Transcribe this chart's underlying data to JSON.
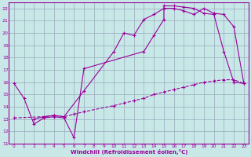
{
  "xlabel": "Windchill (Refroidissement éolien,°C)",
  "bg_color": "#c8e8e8",
  "line_color": "#990099",
  "grid_color": "#99aabb",
  "xlim": [
    -0.5,
    23.5
  ],
  "ylim": [
    11,
    22.5
  ],
  "xticks": [
    0,
    1,
    2,
    3,
    4,
    5,
    6,
    7,
    8,
    9,
    10,
    11,
    12,
    13,
    14,
    15,
    16,
    17,
    18,
    19,
    20,
    21,
    22,
    23
  ],
  "yticks": [
    11,
    12,
    13,
    14,
    15,
    16,
    17,
    18,
    19,
    20,
    21,
    22
  ],
  "line1_x": [
    0,
    1,
    2,
    3,
    4,
    5,
    6,
    7,
    13,
    14,
    15,
    15,
    16,
    17,
    18,
    19,
    20,
    21,
    22,
    23
  ],
  "line1_y": [
    15.9,
    14.7,
    12.6,
    13.1,
    13.2,
    13.1,
    11.5,
    17.1,
    18.5,
    19.8,
    21.1,
    22.2,
    22.2,
    22.1,
    22.0,
    21.6,
    21.5,
    18.5,
    16.0,
    15.9
  ],
  "line2_x": [
    0,
    3,
    4,
    5,
    6,
    7,
    10,
    11,
    12,
    13,
    14,
    15,
    16,
    17,
    18,
    19,
    20,
    21,
    22,
    23
  ],
  "line2_y": [
    13.1,
    13.2,
    13.3,
    13.2,
    13.4,
    13.6,
    14.1,
    14.3,
    14.5,
    14.7,
    15.0,
    15.2,
    15.4,
    15.6,
    15.8,
    16.0,
    16.1,
    16.2,
    16.2,
    15.9
  ],
  "line3_x": [
    2,
    3,
    4,
    5,
    7,
    10,
    11,
    12,
    13,
    14,
    15,
    16,
    17,
    18,
    19,
    20,
    21,
    22,
    23
  ],
  "line3_y": [
    13.0,
    13.2,
    13.3,
    13.2,
    15.3,
    18.5,
    20.0,
    19.8,
    21.1,
    21.5,
    22.0,
    22.0,
    21.8,
    21.5,
    22.0,
    21.6,
    21.5,
    20.5,
    15.9
  ]
}
